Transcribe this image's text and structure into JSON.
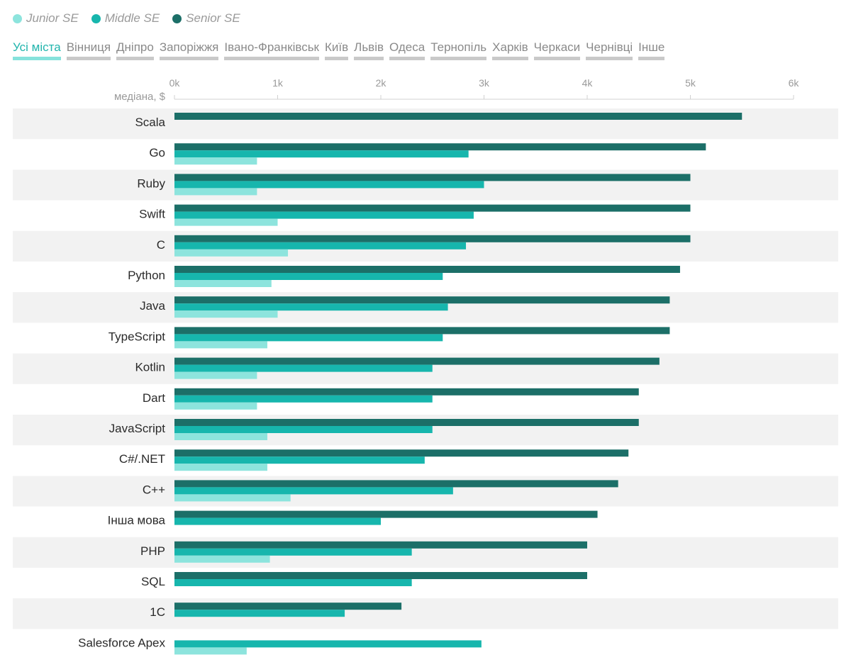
{
  "legend": [
    {
      "label": "Junior SE",
      "color": "#8de4dd"
    },
    {
      "label": "Middle SE",
      "color": "#17b6ad"
    },
    {
      "label": "Senior SE",
      "color": "#1c6f68"
    }
  ],
  "tabs": [
    {
      "label": "Усі міста",
      "active": true
    },
    {
      "label": "Вінниця"
    },
    {
      "label": "Дніпро"
    },
    {
      "label": "Запоріжжя"
    },
    {
      "label": "Івано-Франківськ"
    },
    {
      "label": "Київ"
    },
    {
      "label": "Львів"
    },
    {
      "label": "Одеса"
    },
    {
      "label": "Тернопіль"
    },
    {
      "label": "Харків"
    },
    {
      "label": "Черкаси"
    },
    {
      "label": "Чернівці"
    },
    {
      "label": "Інше"
    }
  ],
  "chart_data": {
    "type": "bar",
    "orientation": "horizontal",
    "ylabel": "медіана, $",
    "xlim": [
      0,
      6000
    ],
    "xticks": [
      0,
      1000,
      2000,
      3000,
      4000,
      5000,
      6000
    ],
    "xtick_labels": [
      "0k",
      "1k",
      "2k",
      "3k",
      "4k",
      "5k",
      "6k"
    ],
    "categories": [
      "Scala",
      "Go",
      "Ruby",
      "Swift",
      "C",
      "Python",
      "Java",
      "TypeScript",
      "Kotlin",
      "Dart",
      "JavaScript",
      "C#/.NET",
      "C++",
      "Інша мова",
      "PHP",
      "SQL",
      "1С",
      "Salesforce Apex"
    ],
    "series": [
      {
        "name": "Senior SE",
        "color": "#1c6f68",
        "values": [
          5500,
          5150,
          5000,
          5000,
          5000,
          4900,
          4800,
          4800,
          4700,
          4500,
          4500,
          4400,
          4300,
          4100,
          4000,
          4000,
          2200,
          null
        ]
      },
      {
        "name": "Middle SE",
        "color": "#17b6ad",
        "values": [
          null,
          2850,
          3000,
          2900,
          2825,
          2600,
          2650,
          2600,
          2500,
          2500,
          2500,
          2425,
          2700,
          2000,
          2300,
          2300,
          1650,
          2975
        ]
      },
      {
        "name": "Junior SE",
        "color": "#8de4dd",
        "values": [
          null,
          800,
          800,
          1000,
          1100,
          940,
          1000,
          900,
          800,
          800,
          900,
          900,
          1125,
          null,
          925,
          null,
          null,
          700
        ]
      }
    ],
    "grid": false,
    "row_banding": true
  }
}
